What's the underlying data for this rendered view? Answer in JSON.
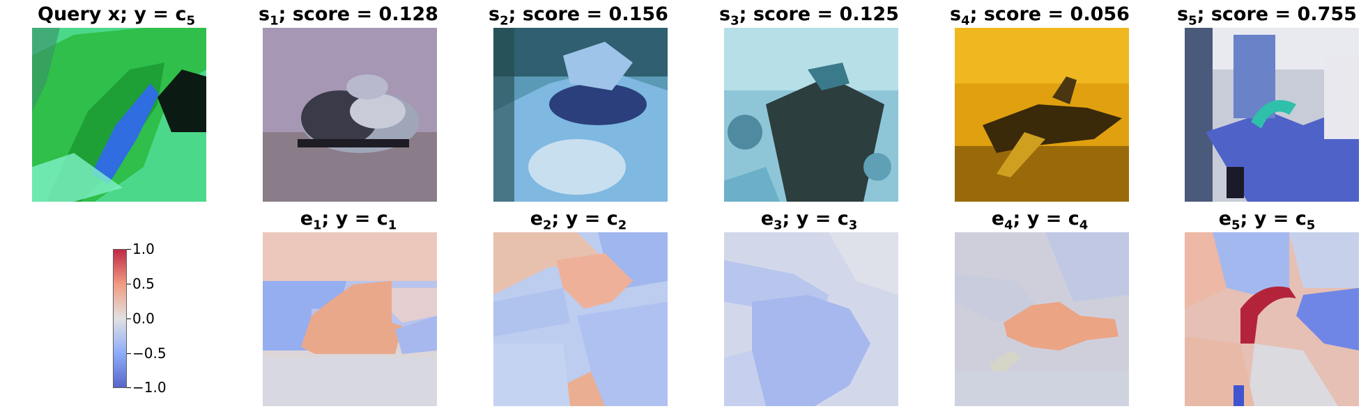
{
  "chart_data": {
    "type": "heatmap",
    "query": {
      "title": "Query x; y = c",
      "title_sub": "5"
    },
    "similar": [
      {
        "title": "s",
        "title_sub": "1",
        "title_rest": "; score = 0.128",
        "score": 0.128
      },
      {
        "title": "s",
        "title_sub": "2",
        "title_rest": "; score = 0.156",
        "score": 0.156
      },
      {
        "title": "s",
        "title_sub": "3",
        "title_rest": "; score = 0.125",
        "score": 0.125
      },
      {
        "title": "s",
        "title_sub": "4",
        "title_rest": "; score = 0.056",
        "score": 0.056
      },
      {
        "title": "s",
        "title_sub": "5",
        "title_rest": "; score = 0.755",
        "score": 0.755
      }
    ],
    "explanations": [
      {
        "title": "e",
        "title_sub": "1",
        "title_rest": "; y = c",
        "title_sub2": "1"
      },
      {
        "title": "e",
        "title_sub": "2",
        "title_rest": "; y = c",
        "title_sub2": "2"
      },
      {
        "title": "e",
        "title_sub": "3",
        "title_rest": "; y = c",
        "title_sub2": "3"
      },
      {
        "title": "e",
        "title_sub": "4",
        "title_rest": "; y = c",
        "title_sub2": "4"
      },
      {
        "title": "e",
        "title_sub": "5",
        "title_rest": "; y = c",
        "title_sub2": "5"
      }
    ],
    "colorbar": {
      "colormap": "coolwarm",
      "range": [
        -1.0,
        1.0
      ],
      "ticks": [
        "1.0",
        "0.5",
        "0.0",
        "−0.5",
        "−1.0"
      ]
    }
  }
}
